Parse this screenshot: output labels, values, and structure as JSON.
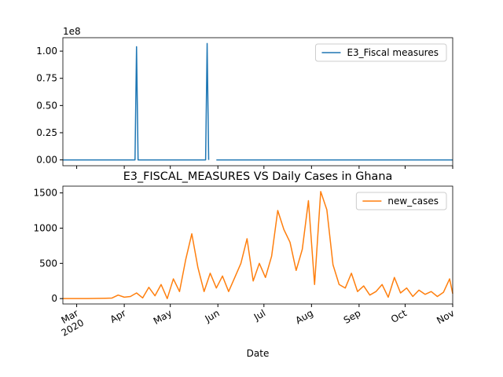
{
  "chart_data": [
    {
      "type": "line",
      "offset_label": "1e8",
      "x": [
        "2020-02-21",
        "2020-04-08",
        "2020-04-09",
        "2020-04-10",
        "2020-05-24",
        "2020-05-25",
        "2020-05-26",
        "2020-05-27",
        "2020-05-31",
        "2020-11-01"
      ],
      "series": [
        {
          "name": "E3_Fiscal measures",
          "color": "#1f77b4",
          "values": [
            0,
            0,
            104000000,
            0,
            0,
            107000000,
            0,
            null,
            0,
            0
          ]
        }
      ],
      "xlim": [
        "2020-02-21",
        "2020-11-01"
      ],
      "xticks": [
        "2020-03-01",
        "2020-04-01",
        "2020-05-01",
        "2020-06-01",
        "2020-07-01",
        "2020-08-01",
        "2020-09-01",
        "2020-10-01",
        "2020-11-01"
      ],
      "ylim": [
        -5350000,
        112350000
      ],
      "yticks": [
        {
          "value": 0,
          "label": "0.00"
        },
        {
          "value": 25000000,
          "label": "0.25"
        },
        {
          "value": 50000000,
          "label": "0.50"
        },
        {
          "value": 75000000,
          "label": "0.75"
        },
        {
          "value": 100000000,
          "label": "1.00"
        }
      ],
      "legend": "upper right"
    },
    {
      "type": "line",
      "title": "E3_FISCAL_MEASURES VS Daily Cases in Ghana",
      "x_label": "Date",
      "x": [
        "2020-02-21",
        "2020-02-25",
        "2020-02-29",
        "2020-03-04",
        "2020-03-08",
        "2020-03-12",
        "2020-03-16",
        "2020-03-20",
        "2020-03-24",
        "2020-03-28",
        "2020-04-01",
        "2020-04-05",
        "2020-04-09",
        "2020-04-13",
        "2020-04-17",
        "2020-04-21",
        "2020-04-25",
        "2020-04-29",
        "2020-05-03",
        "2020-05-07",
        "2020-05-11",
        "2020-05-15",
        "2020-05-19",
        "2020-05-23",
        "2020-05-27",
        "2020-05-31",
        "2020-06-04",
        "2020-06-08",
        "2020-06-12",
        "2020-06-16",
        "2020-06-20",
        "2020-06-24",
        "2020-06-28",
        "2020-07-02",
        "2020-07-06",
        "2020-07-10",
        "2020-07-14",
        "2020-07-18",
        "2020-07-22",
        "2020-07-26",
        "2020-07-30",
        "2020-08-03",
        "2020-08-07",
        "2020-08-11",
        "2020-08-15",
        "2020-08-19",
        "2020-08-23",
        "2020-08-27",
        "2020-08-31",
        "2020-09-04",
        "2020-09-08",
        "2020-09-12",
        "2020-09-16",
        "2020-09-20",
        "2020-09-24",
        "2020-09-28",
        "2020-10-02",
        "2020-10-06",
        "2020-10-10",
        "2020-10-14",
        "2020-10-18",
        "2020-10-22",
        "2020-10-26",
        "2020-10-30",
        "2020-11-01"
      ],
      "series": [
        {
          "name": "new_cases",
          "color": "#ff7f0e",
          "values": [
            0,
            0,
            0,
            0,
            0,
            2,
            3,
            5,
            8,
            50,
            20,
            30,
            80,
            10,
            160,
            40,
            200,
            0,
            280,
            100,
            550,
            920,
            440,
            100,
            360,
            150,
            320,
            100,
            300,
            500,
            850,
            250,
            500,
            300,
            600,
            1250,
            980,
            800,
            400,
            700,
            1390,
            200,
            1520,
            1260,
            480,
            200,
            150,
            360,
            100,
            180,
            50,
            100,
            200,
            20,
            300,
            80,
            150,
            30,
            120,
            60,
            100,
            30,
            90,
            280,
            70
          ]
        }
      ],
      "xlim": [
        "2020-02-21",
        "2020-11-01"
      ],
      "xticks": [
        {
          "value": "2020-03-01",
          "label": "Mar\n2020"
        },
        {
          "value": "2020-04-01",
          "label": "Apr"
        },
        {
          "value": "2020-05-01",
          "label": "May"
        },
        {
          "value": "2020-06-01",
          "label": "Jun"
        },
        {
          "value": "2020-07-01",
          "label": "Jul"
        },
        {
          "value": "2020-08-01",
          "label": "Aug"
        },
        {
          "value": "2020-09-01",
          "label": "Sep"
        },
        {
          "value": "2020-10-01",
          "label": "Oct"
        },
        {
          "value": "2020-11-01",
          "label": "Nov"
        }
      ],
      "ylim": [
        -76,
        1596
      ],
      "yticks": [
        0,
        500,
        1000,
        1500
      ],
      "legend": "upper right"
    }
  ]
}
